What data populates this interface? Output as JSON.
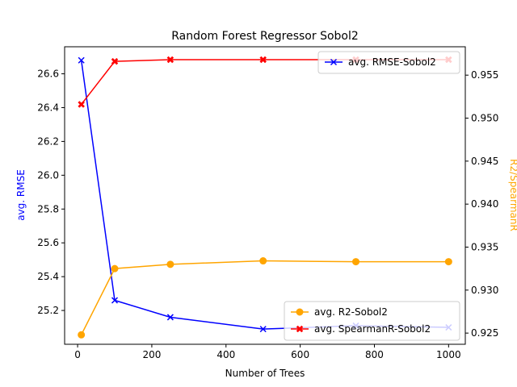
{
  "chart_data": {
    "type": "line",
    "title": "Random Forest Regressor Sobol2",
    "xlabel": "Number of Trees",
    "ylabel_left": "avg. RMSE",
    "ylabel_right": "R2/SpearmanR",
    "xlim": [
      -35,
      1045
    ],
    "ylim_left": [
      25.0,
      26.76
    ],
    "ylim_right": [
      0.9237,
      0.9583
    ],
    "x_ticks": [
      0,
      200,
      400,
      600,
      800,
      1000
    ],
    "y_ticks_left": [
      25.2,
      25.4,
      25.6,
      25.8,
      26.0,
      26.2,
      26.4,
      26.6
    ],
    "y_ticks_right": [
      0.925,
      0.93,
      0.935,
      0.94,
      0.945,
      0.95,
      0.955
    ],
    "x": [
      10,
      100,
      250,
      500,
      750,
      1000
    ],
    "left_series": [
      {
        "name": "avg. RMSE-Sobol2",
        "color": "#0000ff",
        "marker": "x",
        "values": [
          26.68,
          25.26,
          25.16,
          25.09,
          25.11,
          25.1
        ]
      }
    ],
    "right_series": [
      {
        "name": "avg. R2-Sobol2",
        "color": "#ffa500",
        "marker": "circle",
        "values": [
          0.9248,
          0.9325,
          0.933,
          0.9334,
          0.9333,
          0.9333
        ]
      },
      {
        "name": "avg. SpearmanR-Sobol2",
        "color": "#ff0000",
        "marker": "X",
        "values": [
          0.9516,
          0.9566,
          0.9568,
          0.9568,
          0.9568,
          0.9568
        ]
      }
    ],
    "legend_upper": "top-right",
    "legend_lower": "bottom-right",
    "grid": false
  }
}
